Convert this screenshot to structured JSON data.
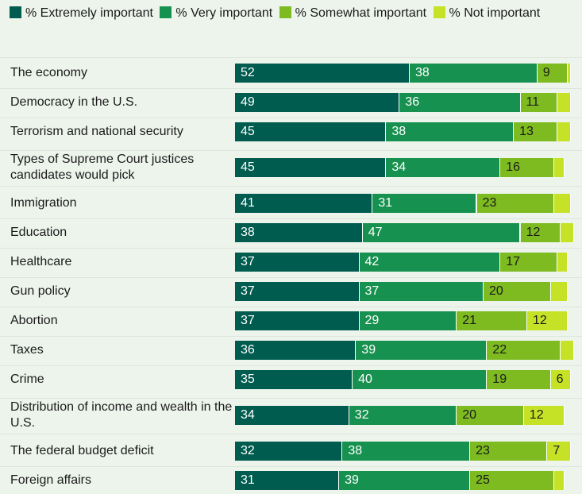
{
  "chart_data": {
    "type": "bar",
    "orientation": "horizontal",
    "stacked": true,
    "legend_position": "top",
    "grid": false,
    "xlim": [
      0,
      100
    ],
    "categories": [
      "The economy",
      "Democracy in the U.S.",
      "Terrorism and national security",
      "Types of Supreme Court justices candidates would pick",
      "Immigration",
      "Education",
      "Healthcare",
      "Gun policy",
      "Abortion",
      "Taxes",
      "Crime",
      "Distribution of income and wealth in the U.S.",
      "The federal budget deficit",
      "Foreign affairs"
    ],
    "series": [
      {
        "name": "% Extremely important",
        "color": "#005c4f",
        "values": [
          52,
          49,
          45,
          45,
          41,
          38,
          37,
          37,
          37,
          36,
          35,
          34,
          32,
          31
        ],
        "labels": [
          "52",
          "49",
          "45",
          "45",
          "41",
          "38",
          "37",
          "37",
          "37",
          "36",
          "35",
          "34",
          "32",
          "31"
        ]
      },
      {
        "name": "% Very important",
        "color": "#17914f",
        "values": [
          38,
          36,
          38,
          34,
          31,
          47,
          42,
          37,
          29,
          39,
          40,
          32,
          38,
          39
        ],
        "labels": [
          "38",
          "36",
          "38",
          "34",
          "31",
          "47",
          "42",
          "37",
          "29",
          "39",
          "40",
          "32",
          "38",
          "39"
        ]
      },
      {
        "name": "% Somewhat important",
        "color": "#7dbb20",
        "values": [
          9,
          11,
          13,
          16,
          23,
          12,
          17,
          20,
          21,
          22,
          19,
          20,
          23,
          25
        ],
        "labels": [
          "9",
          "11",
          "13",
          "16",
          "23",
          "12",
          "17",
          "20",
          "21",
          "22",
          "19",
          "20",
          "23",
          "25"
        ]
      },
      {
        "name": "% Not important",
        "color": "#c6e227",
        "values": [
          1,
          4,
          4,
          3,
          5,
          4,
          3,
          5,
          12,
          4,
          6,
          12,
          7,
          3
        ],
        "labels": [
          "",
          "",
          "",
          "",
          "",
          "",
          "",
          "",
          "12",
          "",
          "6",
          "12",
          "7",
          ""
        ]
      }
    ]
  }
}
